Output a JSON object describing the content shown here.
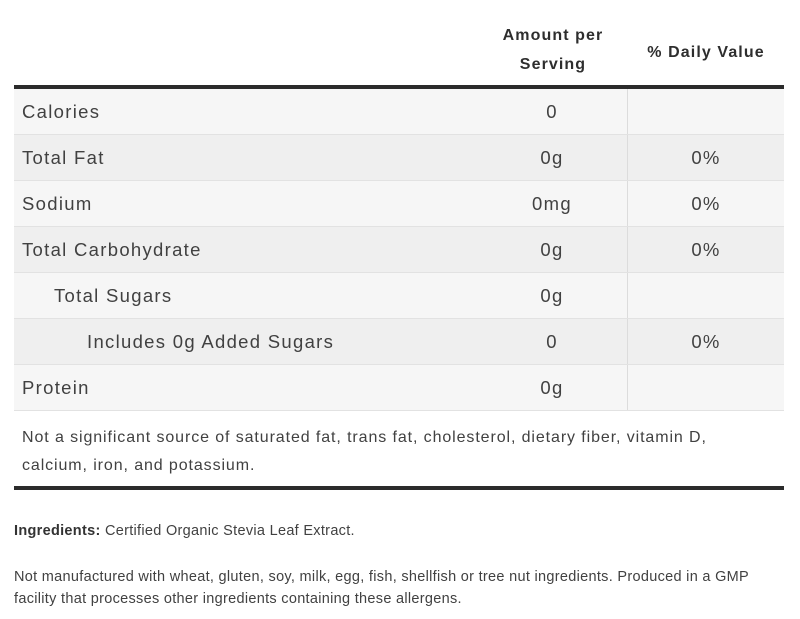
{
  "table": {
    "header": {
      "amount_col": "Amount per Serving",
      "daily_value_col": "% Daily Value"
    },
    "rows": [
      {
        "label": "Calories",
        "indent": 0,
        "amount": "0",
        "daily_value": ""
      },
      {
        "label": "Total Fat",
        "indent": 0,
        "amount": "0g",
        "daily_value": "0%"
      },
      {
        "label": "Sodium",
        "indent": 0,
        "amount": "0mg",
        "daily_value": "0%"
      },
      {
        "label": "Total Carbohydrate",
        "indent": 0,
        "amount": "0g",
        "daily_value": "0%"
      },
      {
        "label": "Total Sugars",
        "indent": 1,
        "amount": "0g",
        "daily_value": ""
      },
      {
        "label": "Includes 0g Added Sugars",
        "indent": 2,
        "amount": "0",
        "daily_value": "0%"
      },
      {
        "label": "Protein",
        "indent": 0,
        "amount": "0g",
        "daily_value": ""
      }
    ],
    "footnote": "Not a significant source of saturated fat, trans fat, cholesterol, dietary fiber, vitamin D, calcium, iron, and potassium."
  },
  "ingredients": {
    "label": "Ingredients:",
    "text": "Certified Organic Stevia Leaf Extract."
  },
  "allergen_note": "Not manufactured with wheat, gluten, soy, milk, egg, fish, shellfish or tree nut ingredients. Produced in a GMP facility that processes other ingredients containing these allergens.",
  "colors": {
    "border_dark": "#2b2b2b",
    "row_light": "#f6f6f6",
    "row_dark": "#efefef",
    "row_divider": "#e2e2e2",
    "col_divider": "#dcdcdc",
    "text": "#414141",
    "header_text": "#2e2e2e"
  }
}
